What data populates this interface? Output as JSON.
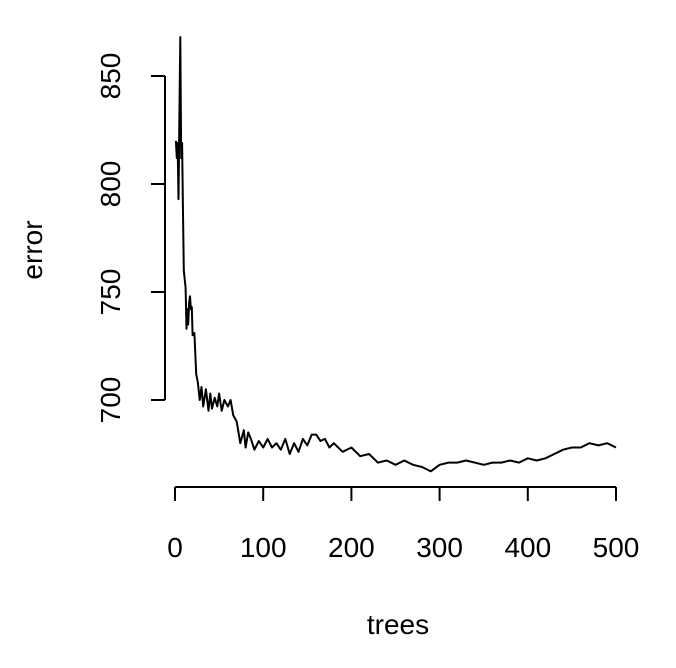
{
  "chart_data": {
    "type": "line",
    "title": "",
    "xlabel": "trees",
    "ylabel": "error",
    "xlim": [
      0,
      500
    ],
    "ylim": [
      650,
      870
    ],
    "x_ticks": [
      0,
      100,
      200,
      300,
      400,
      500
    ],
    "y_ticks": [
      700,
      750,
      800,
      850
    ],
    "x_tick_labels": [
      "0",
      "100",
      "200",
      "300",
      "400",
      "500"
    ],
    "y_tick_labels": [
      "700",
      "750",
      "800",
      "850"
    ],
    "grid": false,
    "line_color": "#000000",
    "series": [
      {
        "x": [
          1,
          2,
          3,
          4,
          5,
          6,
          7,
          8,
          9,
          10,
          12,
          13,
          14,
          15,
          16,
          17,
          18,
          19,
          20,
          22,
          24,
          26,
          28,
          30,
          32,
          35,
          38,
          40,
          42,
          45,
          48,
          50,
          53,
          56,
          60,
          63,
          66,
          70,
          74,
          78,
          80,
          83,
          86,
          90,
          95,
          100,
          105,
          110,
          115,
          120,
          125,
          130,
          135,
          140,
          145,
          150,
          155,
          160,
          165,
          170,
          175,
          180,
          190,
          200,
          210,
          220,
          230,
          240,
          250,
          260,
          270,
          280,
          290,
          300,
          310,
          320,
          330,
          340,
          350,
          360,
          370,
          380,
          390,
          400,
          410,
          420,
          430,
          440,
          450,
          460,
          470,
          480,
          490,
          500
        ],
        "y": [
          820,
          812,
          819,
          793,
          832,
          868,
          812,
          819,
          790,
          760,
          752,
          733,
          742,
          735,
          745,
          748,
          742,
          743,
          730,
          731,
          712,
          708,
          700,
          706,
          697,
          705,
          695,
          703,
          696,
          701,
          697,
          703,
          695,
          700,
          697,
          700,
          693,
          690,
          680,
          686,
          678,
          685,
          682,
          677,
          681,
          678,
          682,
          678,
          680,
          677,
          682,
          675,
          680,
          676,
          682,
          679,
          684,
          684,
          681,
          682,
          678,
          680,
          676,
          678,
          674,
          675,
          671,
          672,
          670,
          672,
          670,
          669,
          667,
          670,
          671,
          671,
          672,
          671,
          670,
          671,
          671,
          672,
          671,
          673,
          672,
          673,
          675,
          677,
          678,
          678,
          680,
          679,
          680,
          678
        ]
      }
    ]
  }
}
